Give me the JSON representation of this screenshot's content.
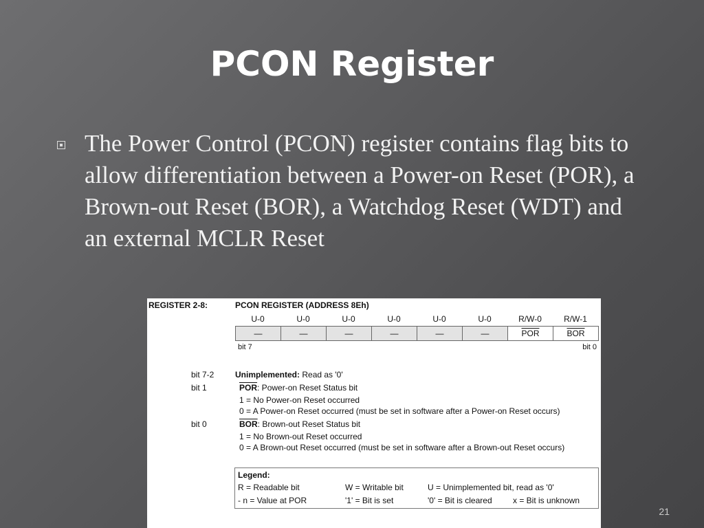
{
  "title": "PCON Register",
  "bullet_text": "The Power Control (PCON) register contains flag bits to allow differentiation between a Power-on Reset (POR), a Brown-out Reset (BOR), a Watchdog Reset (WDT) and an external MCLR Reset",
  "register": {
    "id": "REGISTER 2-8:",
    "name": "PCON REGISTER (ADDRESS 8Eh)",
    "bit_types": [
      "U-0",
      "U-0",
      "U-0",
      "U-0",
      "U-0",
      "U-0",
      "R/W-0",
      "R/W-1"
    ],
    "bit_names": [
      "—",
      "—",
      "—",
      "—",
      "—",
      "—",
      "POR",
      "BOR"
    ],
    "msb": "bit 7",
    "lsb": "bit 0",
    "desc": [
      {
        "bit": "bit 7-2",
        "name": "Unimplemented:",
        "text": " Read as '0'"
      },
      {
        "bit": "bit 1",
        "name": "POR",
        "text": ": Power-on Reset Status bit",
        "l1": "1 = No Power-on Reset occurred",
        "l0": "0 = A Power-on Reset occurred (must be set in software after a Power-on Reset occurs)"
      },
      {
        "bit": "bit 0",
        "name": "BOR",
        "text": ": Brown-out Reset Status bit",
        "l1": "1 = No Brown-out Reset occurred",
        "l0": "0 = A Brown-out Reset occurred (must be set in software after a Brown-out Reset occurs)"
      }
    ],
    "legend": {
      "title": "Legend:",
      "r": "R = Readable bit",
      "w": "W = Writable bit",
      "u": "U = Unimplemented bit, read as '0'",
      "n": "- n = Value at POR",
      "set": "'1' = Bit is set",
      "clr": "'0' = Bit is cleared",
      "x": "x = Bit is unknown"
    }
  },
  "page_number": "21"
}
